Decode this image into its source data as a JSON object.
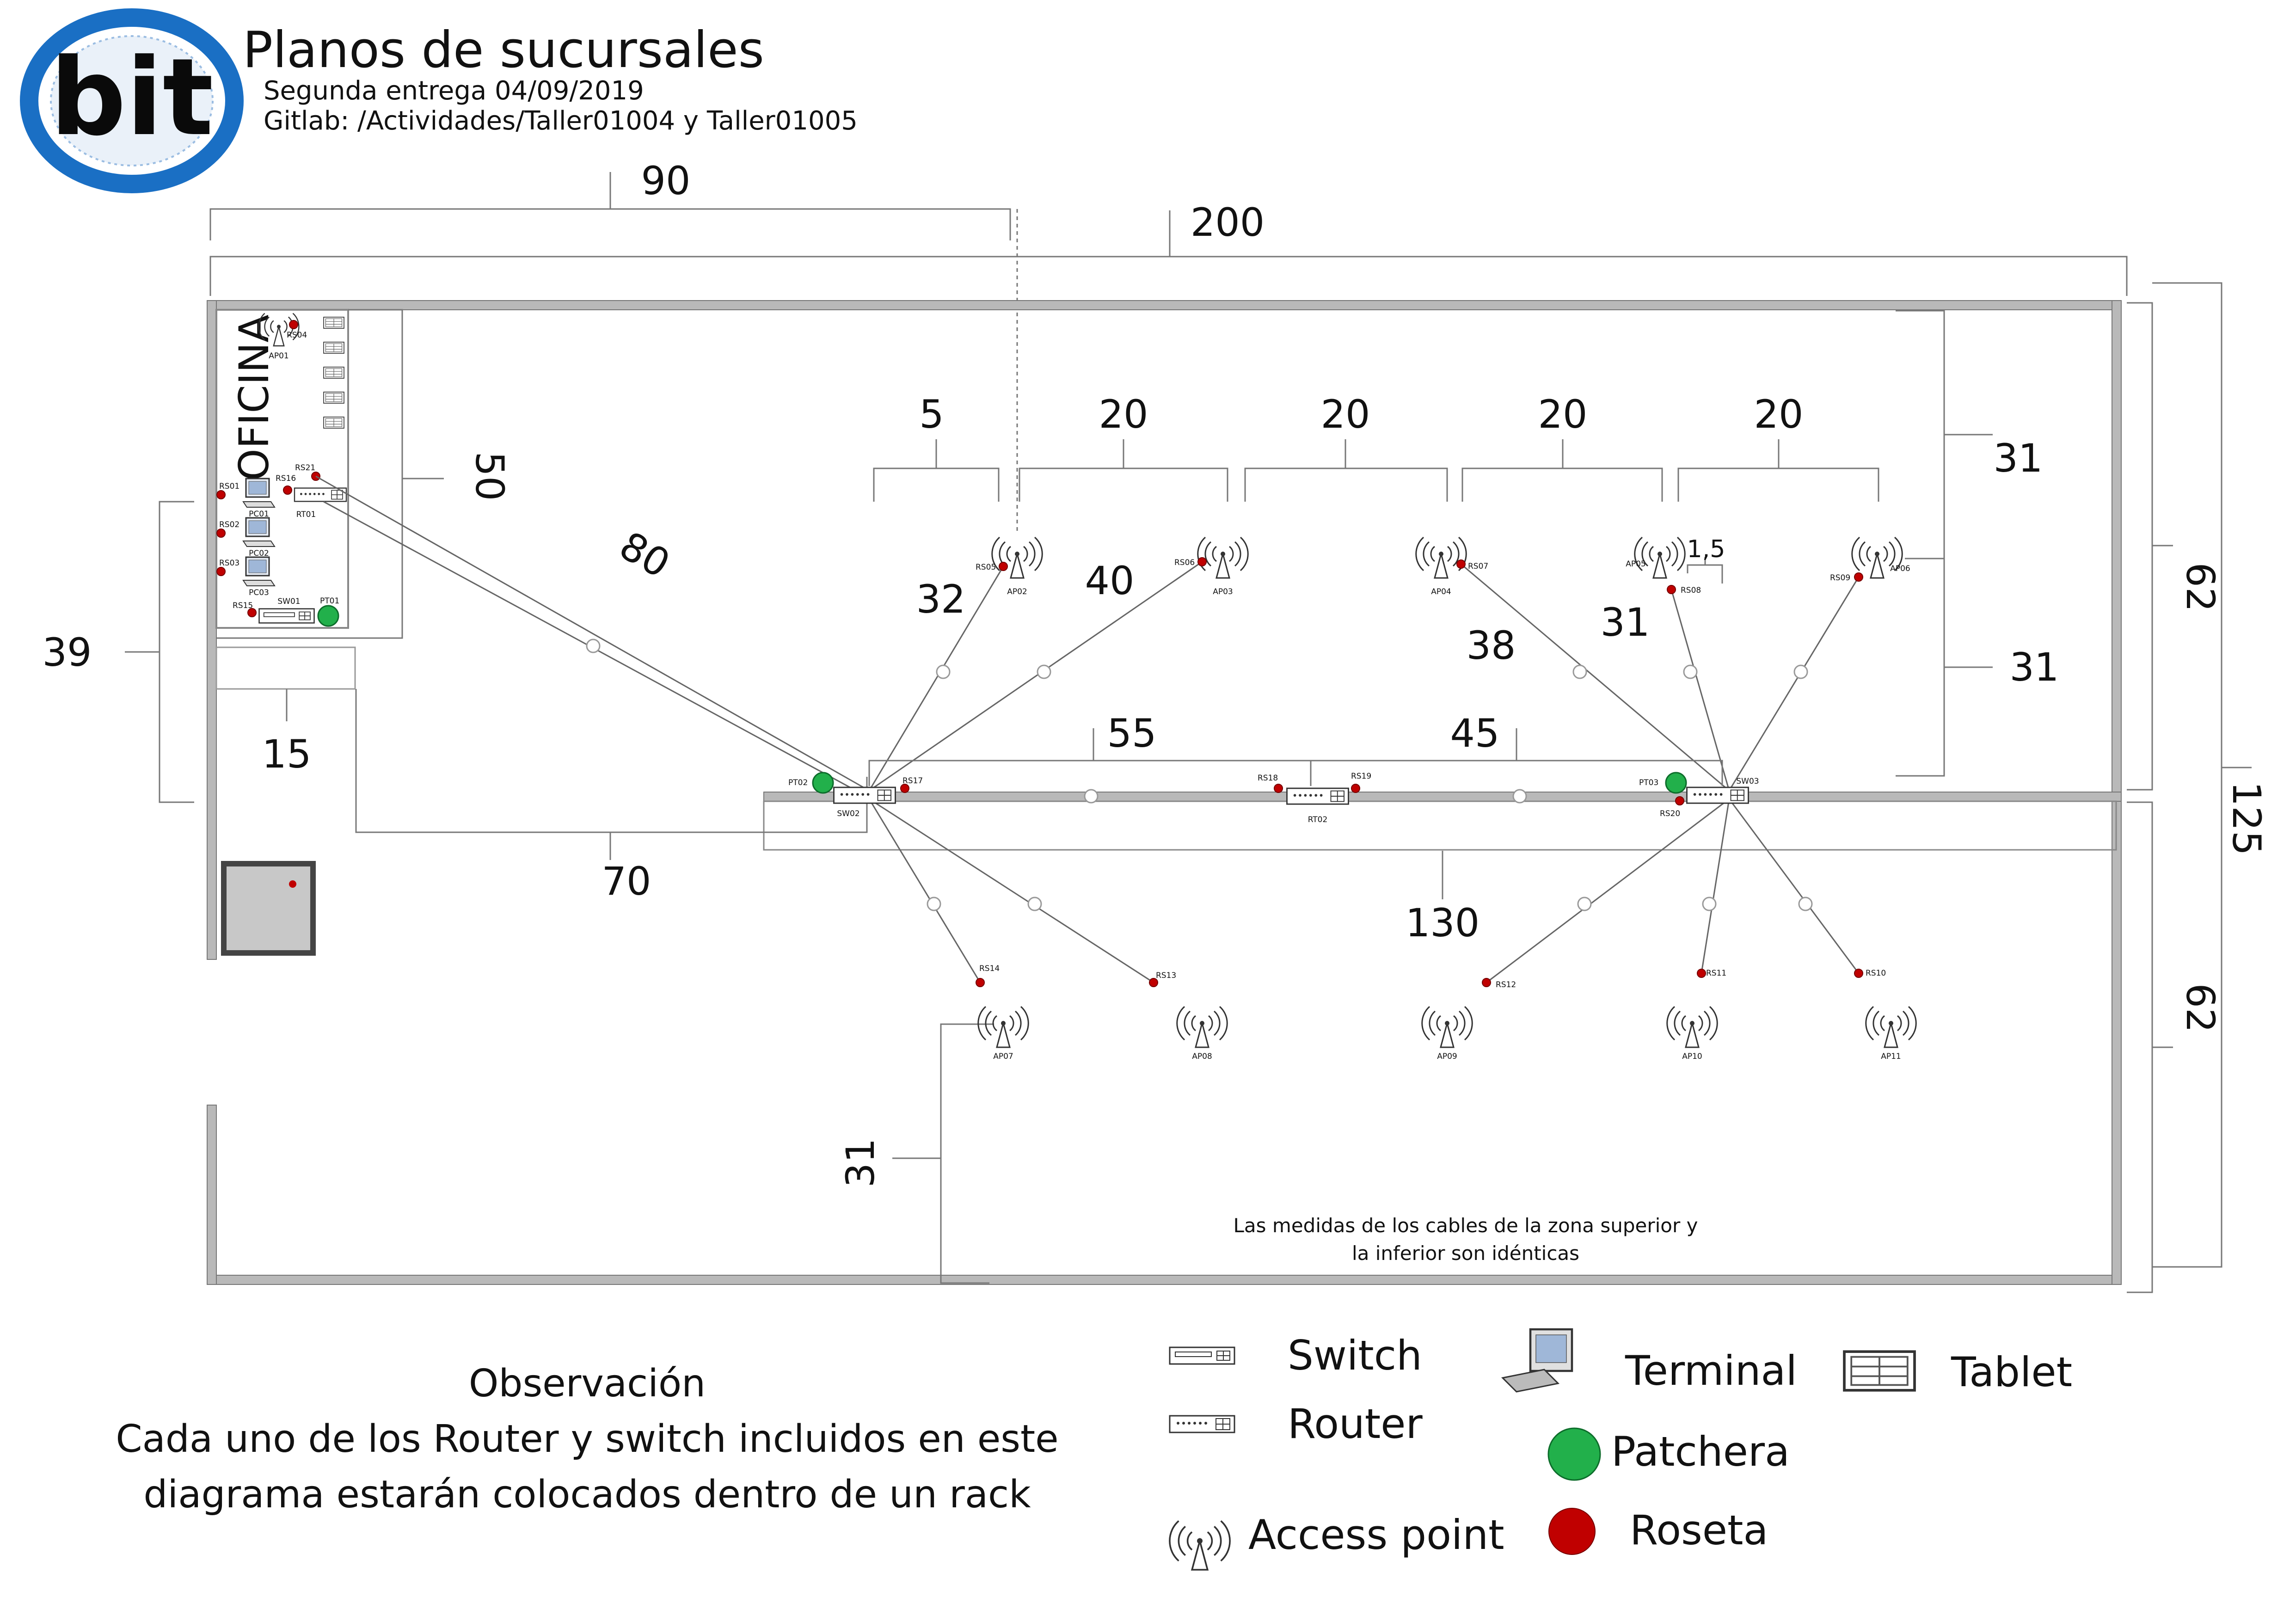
{
  "header": {
    "logo_text": "bit",
    "title": "Planos de sucursales",
    "subtitle1": "Segunda entrega 04/09/2019",
    "subtitle2": "Gitlab: /Actividades/Taller01004 y Taller01005"
  },
  "room": {
    "office_label": "OFICINA"
  },
  "dimensions": {
    "d90": "90",
    "d200": "200",
    "d5": "5",
    "d20a": "20",
    "d20b": "20",
    "d20c": "20",
    "d20d": "20",
    "d31a": "31",
    "d31b": "31",
    "d62a": "62",
    "d62b": "62",
    "d125": "125",
    "d50": "50",
    "d39": "39",
    "d15": "15",
    "d70": "70",
    "d80": "80",
    "d32": "32",
    "d40": "40",
    "d38": "38",
    "d31c": "31",
    "d1_5": "1,5",
    "d55": "55",
    "d45": "45",
    "d130": "130",
    "d31d": "31"
  },
  "labels": {
    "AP01": "AP01",
    "AP02": "AP02",
    "AP03": "AP03",
    "AP04": "AP04",
    "AP05": "AP05",
    "AP06": "AP06",
    "AP07": "AP07",
    "AP08": "AP08",
    "AP09": "AP09",
    "AP10": "AP10",
    "AP11": "AP11",
    "RS01": "RS01",
    "RS02": "RS02",
    "RS03": "RS03",
    "RS04": "RS04",
    "RS05": "RS05",
    "RS06": "RS06",
    "RS07": "RS07",
    "RS08": "RS08",
    "RS09": "RS09",
    "RS10": "RS10",
    "RS11": "RS11",
    "RS12": "RS12",
    "RS13": "RS13",
    "RS14": "RS14",
    "RS15": "RS15",
    "RS16": "RS16",
    "RS17": "RS17",
    "RS18": "RS18",
    "RS19": "RS19",
    "RS20": "RS20",
    "RS21": "RS21",
    "SW01": "SW01",
    "SW02": "SW02",
    "SW03": "SW03",
    "RT01": "RT01",
    "RT02": "RT02",
    "PT01": "PT01",
    "PT02": "PT02",
    "PT03": "PT03",
    "PC01": "PC01",
    "PC02": "PC02",
    "PC03": "PC03"
  },
  "note": {
    "line1": "Las medidas de los cables de la zona superior y",
    "line2": "la inferior son idénticas"
  },
  "observation": {
    "title": "Observación",
    "line1": "Cada uno de los Router y switch incluidos en este",
    "line2": "diagrama estarán colocados dentro de un rack"
  },
  "legend": {
    "switch": "Switch",
    "router": "Router",
    "access_point": "Access point",
    "terminal": "Terminal",
    "patchera": "Patchera",
    "roseta": "Roseta",
    "tablet": "Tablet"
  },
  "colors": {
    "logo_blue": "#1a6fc4",
    "patchera": "#22b04b",
    "roseta": "#c00000",
    "wall": "#b9b9b9"
  }
}
